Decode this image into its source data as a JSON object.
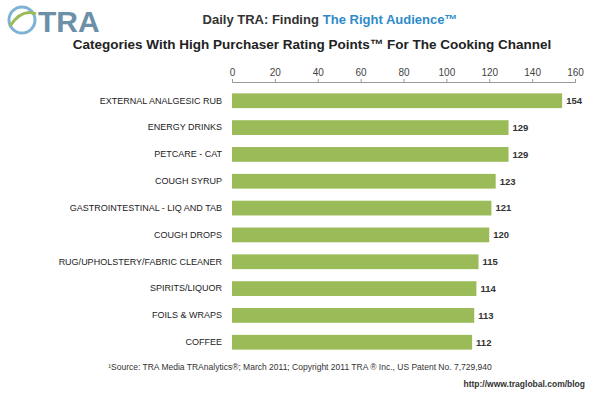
{
  "logo": "TRA",
  "chart_data": {
    "type": "bar",
    "orientation": "horizontal",
    "title": [
      "Daily TRA: Finding",
      "The Right Audience™"
    ],
    "subtitle": "Categories With High Purchaser Rating Points™ For The Cooking Channel",
    "categories": [
      "EXTERNAL ANALGESIC RUB",
      "ENERGY DRINKS",
      "PETCARE - CAT",
      "COUGH SYRUP",
      "GASTROINTESTINAL - LIQ AND TAB",
      "COUGH DROPS",
      "RUG/UPHOLSTERY/FABRIC CLEANER",
      "SPIRITS/LIQUOR",
      "FOILS & WRAPS",
      "COFFEE"
    ],
    "values": [
      154,
      129,
      129,
      123,
      121,
      120,
      115,
      114,
      113,
      112
    ],
    "color": "#9bbb59",
    "xlim": [
      0,
      160
    ],
    "xticks": [
      0,
      20,
      40,
      60,
      80,
      100,
      120,
      140,
      160
    ],
    "grid": false,
    "data_labels": true
  },
  "footer": {
    "source": "¹Source:  TRA Media TRAnalytics®; March  2011; Copyright 2011 TRA ® Inc., US Patent No. 7,729,940",
    "url": "http://www.traglobal.com/blog"
  }
}
